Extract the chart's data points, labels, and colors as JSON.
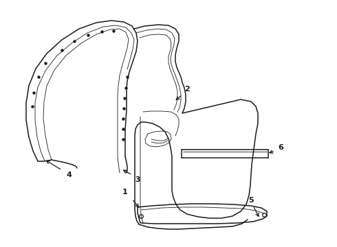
{
  "background_color": "#ffffff",
  "line_color": "#1a1a1a",
  "lw_main": 1.1,
  "lw_thin": 0.6,
  "lw_label": 0.8,
  "dot_size": 2.2,
  "font_size": 8,
  "font_weight": "bold"
}
